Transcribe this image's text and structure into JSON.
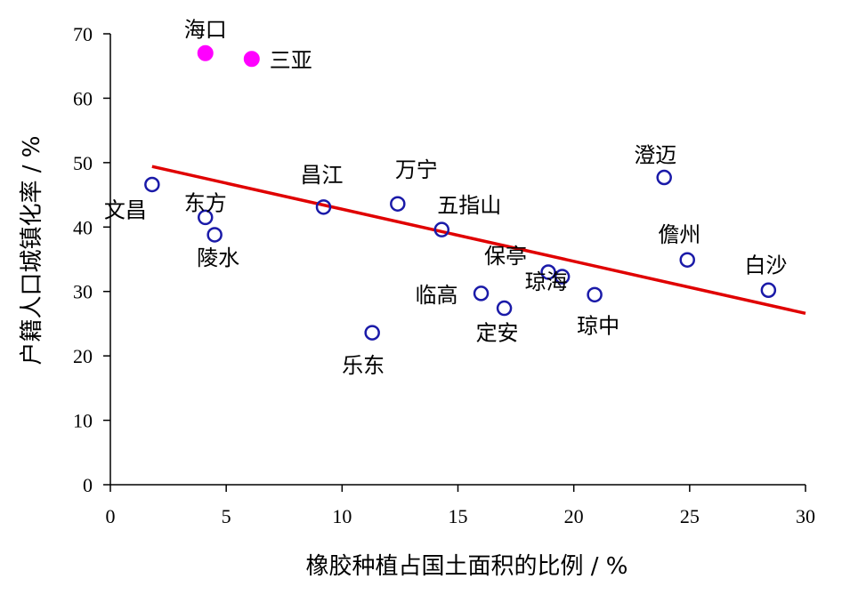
{
  "chart_data": {
    "type": "scatter",
    "title": "",
    "xlabel": "橡胶种植占国土面积的比例 / %",
    "ylabel": "户籍人口城镇化率 / %",
    "xlim": [
      0,
      30
    ],
    "ylim": [
      0,
      70
    ],
    "xticks": [
      "0",
      "5",
      "10",
      "15",
      "20",
      "25",
      "30"
    ],
    "yticks": [
      "0",
      "10",
      "20",
      "30",
      "40",
      "50",
      "60",
      "70"
    ],
    "grid": false,
    "legend": "none",
    "colors": {
      "hollow": "#1a1aa8",
      "filled": "#ff00ff",
      "trend": "#e00000"
    },
    "points": [
      {
        "label": "海口",
        "x": 4.1,
        "y": 67.0,
        "style": "filled"
      },
      {
        "label": "三亚",
        "x": 6.1,
        "y": 66.1,
        "style": "filled"
      },
      {
        "label": "文昌",
        "x": 1.8,
        "y": 46.6,
        "style": "hollow"
      },
      {
        "label": "东方",
        "x": 4.1,
        "y": 41.5,
        "style": "hollow"
      },
      {
        "label": "陵水",
        "x": 4.5,
        "y": 38.8,
        "style": "hollow"
      },
      {
        "label": "昌江",
        "x": 9.2,
        "y": 43.1,
        "style": "hollow"
      },
      {
        "label": "万宁",
        "x": 12.4,
        "y": 43.6,
        "style": "hollow"
      },
      {
        "label": "五指山",
        "x": 14.3,
        "y": 39.6,
        "style": "hollow"
      },
      {
        "label": "乐东",
        "x": 11.3,
        "y": 23.6,
        "style": "hollow"
      },
      {
        "label": "临高",
        "x": 16.0,
        "y": 29.7,
        "style": "hollow"
      },
      {
        "label": "定安",
        "x": 17.0,
        "y": 27.4,
        "style": "hollow"
      },
      {
        "label": "保亭",
        "x": 18.9,
        "y": 33.0,
        "style": "hollow"
      },
      {
        "label": "琼海",
        "x": 19.5,
        "y": 32.3,
        "style": "hollow"
      },
      {
        "label": "琼中",
        "x": 20.9,
        "y": 29.5,
        "style": "hollow"
      },
      {
        "label": "澄迈",
        "x": 23.9,
        "y": 47.7,
        "style": "hollow"
      },
      {
        "label": "儋州",
        "x": 24.9,
        "y": 34.9,
        "style": "hollow"
      },
      {
        "label": "白沙",
        "x": 28.4,
        "y": 30.2,
        "style": "hollow"
      }
    ],
    "trendline": {
      "x": [
        1.8,
        30.0
      ],
      "y": [
        49.4,
        26.6
      ]
    }
  }
}
